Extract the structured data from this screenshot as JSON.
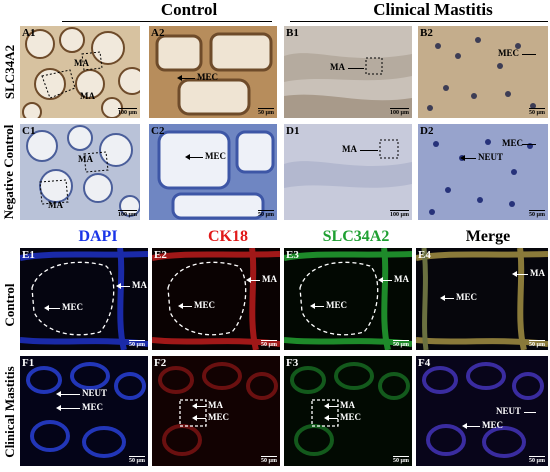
{
  "headers": {
    "control": "Control",
    "clinical_mastitis": "Clinical Mastitis",
    "dapi": "DAPI",
    "ck18": "CK18",
    "slc34a2": "SLC34A2",
    "merge": "Merge"
  },
  "row_labels": {
    "slc34a2": "SLC34A2",
    "negative_control": "Negative Control",
    "control": "Control",
    "clinical_mastitis": "Clinical Mastitis"
  },
  "panels": {
    "a1": {
      "label": "A1",
      "ann1": "MA",
      "ann2": "MA",
      "scale": "100 µm"
    },
    "a2": {
      "label": "A2",
      "ann1": "MEC",
      "scale": "50 µm"
    },
    "b1": {
      "label": "B1",
      "ann1": "MA",
      "scale": "100 µm"
    },
    "b2": {
      "label": "B2",
      "ann1": "MEC",
      "scale": "50 µm"
    },
    "c1": {
      "label": "C1",
      "ann1": "MA",
      "ann2": "MA",
      "scale": "100 µm"
    },
    "c2": {
      "label": "C2",
      "ann1": "MEC",
      "scale": "50 µm"
    },
    "d1": {
      "label": "D1",
      "ann1": "MA",
      "scale": "100 µm"
    },
    "d2": {
      "label": "D2",
      "ann1": "MEC",
      "ann2": "NEUT",
      "scale": "50 µm"
    },
    "e1": {
      "label": "E1",
      "ann1": "MA",
      "ann2": "MEC",
      "scale": "50 µm"
    },
    "e2": {
      "label": "E2",
      "ann1": "MA",
      "ann2": "MEC",
      "scale": "50 µm"
    },
    "e3": {
      "label": "E3",
      "ann1": "MA",
      "ann2": "MEC",
      "scale": "50 µm"
    },
    "e4": {
      "label": "E4",
      "ann1": "MA",
      "ann2": "MEC",
      "scale": "50 µm"
    },
    "f1": {
      "label": "F1",
      "ann1": "NEUT",
      "ann2": "MEC",
      "scale": "50 µm"
    },
    "f2": {
      "label": "F2",
      "ann1": "MA",
      "ann2": "MEC",
      "scale": "50 µm"
    },
    "f3": {
      "label": "F3",
      "ann1": "MA",
      "ann2": "MEC",
      "scale": "50 µm"
    },
    "f4": {
      "label": "F4",
      "ann1": "NEUT",
      "ann2": "MEC",
      "scale": "50 µm"
    }
  },
  "colors": {
    "dapi": "#1a35e8",
    "ck18": "#e11a1a",
    "slc34a2": "#1fa032",
    "ihc_background": "#e9dcc8",
    "hematoxylin": "#4a5e9a",
    "fluor_background": "#050510"
  }
}
